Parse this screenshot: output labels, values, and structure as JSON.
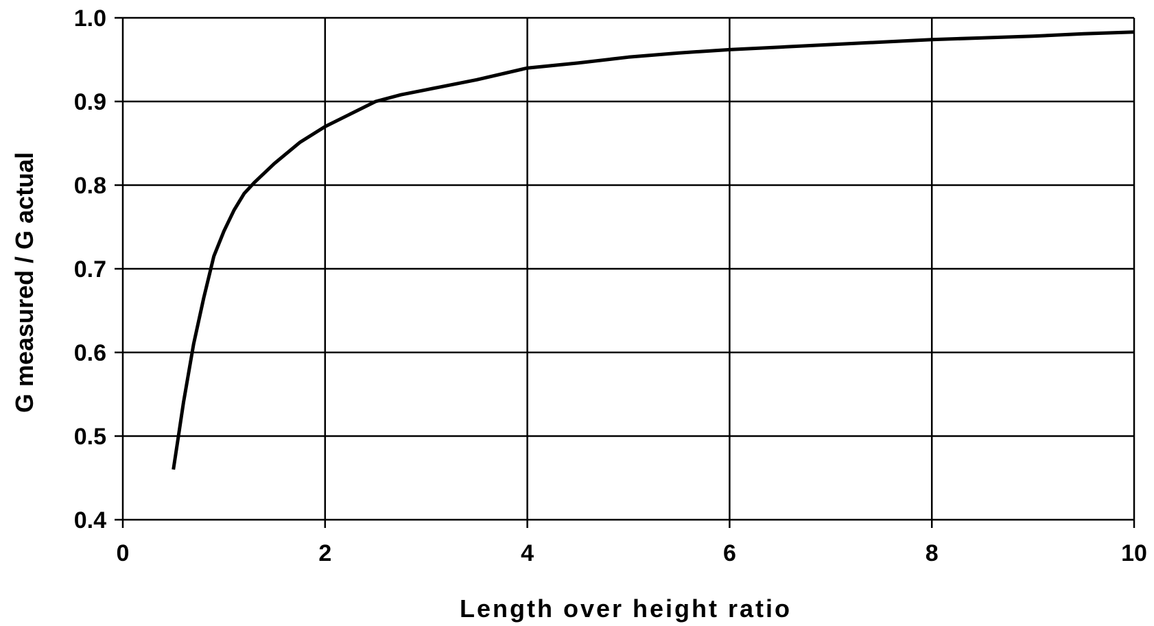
{
  "chart_data": {
    "type": "line",
    "title": "",
    "xlabel": "Length over height ratio",
    "ylabel": "G measured / G actual",
    "xlim": [
      0,
      10
    ],
    "ylim": [
      0.4,
      1.0
    ],
    "x_ticks": [
      0,
      2,
      4,
      6,
      8,
      10
    ],
    "y_ticks": [
      0.4,
      0.5,
      0.6,
      0.7,
      0.8,
      0.9,
      1.0
    ],
    "x_tick_labels": [
      "0",
      "2",
      "4",
      "6",
      "8",
      "10"
    ],
    "y_tick_labels": [
      "0.4",
      "0.5",
      "0.6",
      "0.7",
      "0.8",
      "0.9",
      "1.0"
    ],
    "grid": true,
    "legend": "none",
    "line_color": "#000000",
    "series": [
      {
        "x": [
          0.5,
          0.55,
          0.6,
          0.7,
          0.8,
          0.9,
          1.0,
          1.1,
          1.2,
          1.3,
          1.5,
          1.75,
          2.0,
          2.25,
          2.5,
          2.75,
          3.0,
          3.5,
          4.0,
          4.5,
          5.0,
          5.5,
          6.0,
          6.5,
          7.0,
          7.5,
          8.0,
          8.5,
          9.0,
          9.5,
          10.0
        ],
        "y": [
          0.46,
          0.5,
          0.54,
          0.61,
          0.665,
          0.715,
          0.745,
          0.77,
          0.79,
          0.803,
          0.826,
          0.851,
          0.87,
          0.885,
          0.9,
          0.908,
          0.914,
          0.926,
          0.94,
          0.946,
          0.953,
          0.958,
          0.962,
          0.965,
          0.968,
          0.971,
          0.974,
          0.976,
          0.978,
          0.981,
          0.983
        ]
      }
    ]
  }
}
